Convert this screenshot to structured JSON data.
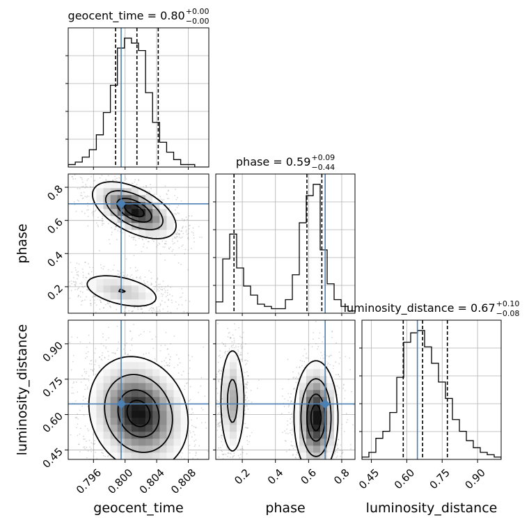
{
  "chart_data": {
    "type": "corner",
    "parameters": [
      "geocent_time",
      "phase",
      "luminosity_distance"
    ],
    "truth_color": "#4c7fb3",
    "truths": {
      "geocent_time": 0.7995,
      "phase": 0.7,
      "luminosity_distance": 0.645
    },
    "titles": [
      {
        "param": "geocent_time",
        "prefix": "geocent_time = ",
        "median": "0.80",
        "plus": "+0.00",
        "minus": "−0.00"
      },
      {
        "param": "phase",
        "prefix": "phase = ",
        "median": "0.59",
        "plus": "+0.09",
        "minus": "−0.44"
      },
      {
        "param": "luminosity_distance",
        "prefix": "luminosity_distance = ",
        "median": "0.67",
        "plus": "+0.10",
        "minus": "−0.08"
      }
    ],
    "ranges": {
      "geocent_time": [
        0.7928,
        0.8106
      ],
      "phase": [
        0.04,
        0.88
      ],
      "luminosity_distance": [
        0.41,
        1.0
      ]
    },
    "ticks": {
      "geocent_time": [
        {
          "v": 0.796,
          "label": "0.796"
        },
        {
          "v": 0.8,
          "label": "0.800"
        },
        {
          "v": 0.804,
          "label": "0.804"
        },
        {
          "v": 0.808,
          "label": "0.808"
        }
      ],
      "phase": [
        {
          "v": 0.2,
          "label": "0.2"
        },
        {
          "v": 0.4,
          "label": "0.4"
        },
        {
          "v": 0.6,
          "label": "0.6"
        },
        {
          "v": 0.8,
          "label": "0.8"
        }
      ],
      "luminosity_distance": [
        {
          "v": 0.45,
          "label": "0.45"
        },
        {
          "v": 0.6,
          "label": "0.60"
        },
        {
          "v": 0.75,
          "label": "0.75"
        },
        {
          "v": 0.9,
          "label": "0.90"
        }
      ]
    },
    "axis_labels": {
      "geocent_time": "geocent_time",
      "phase": "phase",
      "luminosity_distance": "luminosity_distance"
    },
    "quantiles": {
      "geocent_time": [
        0.7988,
        0.8015,
        0.8042
      ],
      "phase": [
        0.15,
        0.59,
        0.68
      ],
      "luminosity_distance": [
        0.585,
        0.667,
        0.772
      ]
    },
    "histograms": {
      "geocent_time": {
        "x0": 0.7928,
        "width": 0.00089,
        "counts": [
          1,
          2,
          4,
          7,
          13,
          22,
          33,
          48,
          52,
          50,
          47,
          30,
          18,
          10,
          6,
          3,
          1,
          1,
          0,
          0
        ]
      },
      "phase": {
        "x0": 0.04,
        "width": 0.042,
        "counts": [
          5,
          24,
          35,
          20,
          12,
          8,
          4,
          3,
          2,
          2,
          6,
          17,
          40,
          52,
          57,
          28,
          13,
          6,
          3,
          1
        ]
      },
      "luminosity_distance": {
        "x0": 0.41,
        "width": 0.0295,
        "counts": [
          1,
          3,
          9,
          12,
          20,
          35,
          50,
          54,
          55,
          48,
          41,
          33,
          26,
          17,
          12,
          8,
          5,
          3,
          2,
          1
        ]
      }
    },
    "grid": true
  }
}
